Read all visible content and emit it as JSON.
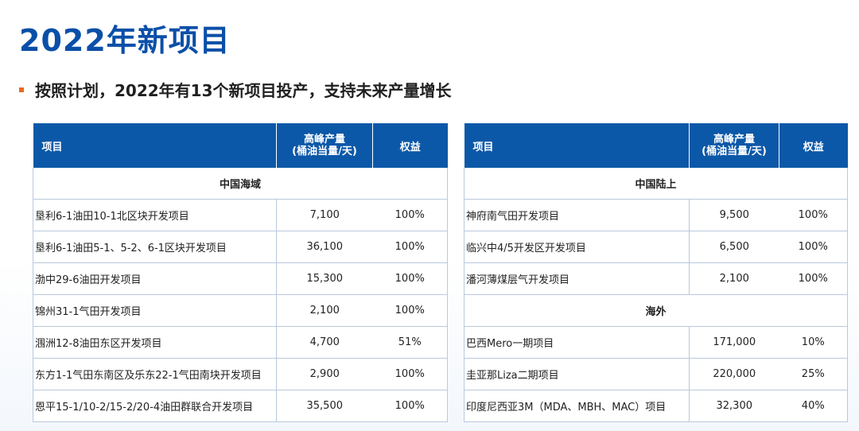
{
  "title": "2022年新项目",
  "subtitle": "按照计划，2022年有13个新项目投产，支持未来产量增长",
  "colors": {
    "accent": "#0c58a8",
    "title": "#0a4fa8",
    "bullet": "#ec6a1e"
  },
  "headers": {
    "project": "项目",
    "peak_line1": "高峰产量",
    "peak_line2": "(桶油当量/天)",
    "equity": "权益"
  },
  "left_table": {
    "section": "中国海域",
    "rows": [
      {
        "name": "垦利6-1油田10-1北区块开发项目",
        "peak": "7,100",
        "equity": "100%"
      },
      {
        "name": "垦利6-1油田5-1、5-2、6-1区块开发项目",
        "peak": "36,100",
        "equity": "100%"
      },
      {
        "name": "渤中29-6油田开发项目",
        "peak": "15,300",
        "equity": "100%"
      },
      {
        "name": "锦州31-1气田开发项目",
        "peak": "2,100",
        "equity": "100%"
      },
      {
        "name": "涠洲12-8油田东区开发项目",
        "peak": "4,700",
        "equity": "51%"
      },
      {
        "name": "东方1-1气田东南区及乐东22-1气田南块开发项目",
        "peak": "2,900",
        "equity": "100%"
      },
      {
        "name": "恩平15-1/10-2/15-2/20-4油田群联合开发项目",
        "peak": "35,500",
        "equity": "100%"
      }
    ]
  },
  "right_table": {
    "section1": "中国陆上",
    "rows1": [
      {
        "name": "神府南气田开发项目",
        "peak": "9,500",
        "equity": "100%"
      },
      {
        "name": "临兴中4/5开发区开发项目",
        "peak": "6,500",
        "equity": "100%"
      },
      {
        "name": "潘河薄煤层气开发项目",
        "peak": "2,100",
        "equity": "100%"
      }
    ],
    "section2": "海外",
    "rows2": [
      {
        "name": "巴西Mero一期项目",
        "peak": "171,000",
        "equity": "10%"
      },
      {
        "name": "圭亚那Liza二期项目",
        "peak": "220,000",
        "equity": "25%"
      },
      {
        "name": "印度尼西亚3M（MDA、MBH、MAC）项目",
        "peak": "32,300",
        "equity": "40%"
      }
    ]
  }
}
